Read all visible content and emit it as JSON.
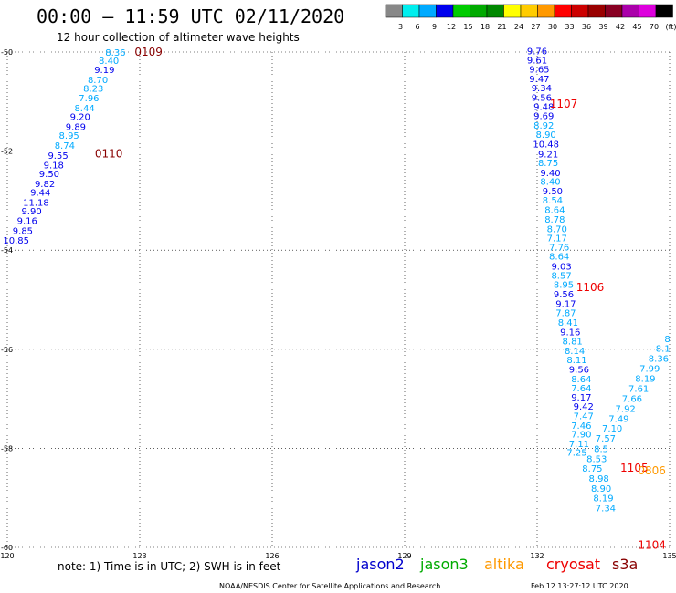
{
  "title": "00:00 – 11:59 UTC 02/11/2020",
  "subtitle": "12 hour collection of altimeter wave heights",
  "note": "note: 1) Time is in UTC; 2) SWH is in feet",
  "credit": "NOAA/NESDIS Center for Satellite Applications and Research",
  "timestamp": "Feb 12 13:27:12 UTC 2020",
  "missions": [
    {
      "name": "jason2",
      "color": "#0000cc"
    },
    {
      "name": "jason3",
      "color": "#00aa00"
    },
    {
      "name": "altika",
      "color": "#ff9900"
    },
    {
      "name": "cryosat",
      "color": "#ee0000"
    },
    {
      "name": "s3a",
      "color": "#880000"
    }
  ],
  "colorbar": {
    "labels": [
      "3",
      "6",
      "9",
      "12",
      "15",
      "18",
      "21",
      "24",
      "27",
      "30",
      "33",
      "36",
      "39",
      "42",
      "45",
      "70",
      "(ft)"
    ],
    "colors": [
      "#888888",
      "#00eeee",
      "#00aaff",
      "#0000ee",
      "#00cc00",
      "#00aa00",
      "#008800",
      "#ffff00",
      "#ffcc00",
      "#ff9900",
      "#ff0000",
      "#cc0000",
      "#990000",
      "#880022",
      "#aa00aa",
      "#dd00dd",
      "#000000"
    ]
  },
  "chart_data": {
    "type": "scatter",
    "xlabel": "",
    "ylabel": "",
    "xlim": [
      120,
      135
    ],
    "ylim": [
      -60,
      -50
    ],
    "x_ticks": [
      "120",
      "123",
      "126",
      "129",
      "132",
      "135"
    ],
    "y_ticks": [
      "-50",
      "-52",
      "-54",
      "-56",
      "-58",
      "-60"
    ],
    "grid": true,
    "pass_labels": [
      {
        "text": "0109",
        "x": 123.2,
        "y": -50.0,
        "color": "#880000"
      },
      {
        "text": "0110",
        "x": 122.3,
        "y": -52.05,
        "color": "#880000"
      },
      {
        "text": "1107",
        "x": 132.6,
        "y": -51.05,
        "color": "#ee0000"
      },
      {
        "text": "1106",
        "x": 133.2,
        "y": -54.75,
        "color": "#ee0000"
      },
      {
        "text": "1105",
        "x": 134.2,
        "y": -58.4,
        "color": "#ee0000"
      },
      {
        "text": "0806",
        "x": 134.6,
        "y": -58.45,
        "color": "#ff9900"
      },
      {
        "text": "1104",
        "x": 134.6,
        "y": -59.95,
        "color": "#ee0000"
      }
    ],
    "series": [
      {
        "points": [
          {
            "x": 122.45,
            "y": -50.0,
            "v": "8.36",
            "c": "#00aaff"
          },
          {
            "x": 122.3,
            "y": -50.17,
            "v": "8.40",
            "c": "#00aaff"
          },
          {
            "x": 122.2,
            "y": -50.35,
            "v": "9.19",
            "c": "#0000ee"
          },
          {
            "x": 122.05,
            "y": -50.55,
            "v": "8.70",
            "c": "#00aaff"
          },
          {
            "x": 121.95,
            "y": -50.73,
            "v": "8.23",
            "c": "#00aaff"
          },
          {
            "x": 121.85,
            "y": -50.92,
            "v": "7.96",
            "c": "#00aaff"
          },
          {
            "x": 121.75,
            "y": -51.12,
            "v": "8.44",
            "c": "#00aaff"
          },
          {
            "x": 121.65,
            "y": -51.3,
            "v": "9.20",
            "c": "#0000ee"
          },
          {
            "x": 121.55,
            "y": -51.5,
            "v": "9.89",
            "c": "#0000ee"
          },
          {
            "x": 121.4,
            "y": -51.68,
            "v": "8.95",
            "c": "#00aaff"
          },
          {
            "x": 121.3,
            "y": -51.88,
            "v": "8.74",
            "c": "#00aaff"
          },
          {
            "x": 121.15,
            "y": -52.08,
            "v": "9.55",
            "c": "#0000ee"
          },
          {
            "x": 121.05,
            "y": -52.27,
            "v": "9.18",
            "c": "#0000ee"
          },
          {
            "x": 120.95,
            "y": -52.45,
            "v": "9.50",
            "c": "#0000ee"
          },
          {
            "x": 120.85,
            "y": -52.65,
            "v": "9.82",
            "c": "#0000ee"
          },
          {
            "x": 120.75,
            "y": -52.83,
            "v": "9.44",
            "c": "#0000ee"
          },
          {
            "x": 120.65,
            "y": -53.03,
            "v": "11.18",
            "c": "#0000ee"
          },
          {
            "x": 120.55,
            "y": -53.2,
            "v": "9.90",
            "c": "#0000ee"
          },
          {
            "x": 120.45,
            "y": -53.4,
            "v": "9.16",
            "c": "#0000ee"
          },
          {
            "x": 120.35,
            "y": -53.6,
            "v": "9.85",
            "c": "#0000ee"
          },
          {
            "x": 120.2,
            "y": -53.79,
            "v": "10.85",
            "c": "#0000ee"
          }
        ]
      },
      {
        "points": [
          {
            "x": 132.0,
            "y": -49.97,
            "v": "9.76",
            "c": "#0000ee"
          },
          {
            "x": 132.0,
            "y": -50.16,
            "v": "9.61",
            "c": "#0000ee"
          },
          {
            "x": 132.05,
            "y": -50.34,
            "v": "9.65",
            "c": "#0000ee"
          },
          {
            "x": 132.05,
            "y": -50.53,
            "v": "9.47",
            "c": "#0000ee"
          },
          {
            "x": 132.1,
            "y": -50.72,
            "v": "9.34",
            "c": "#0000ee"
          },
          {
            "x": 132.1,
            "y": -50.91,
            "v": "9.56",
            "c": "#0000ee"
          },
          {
            "x": 132.15,
            "y": -51.1,
            "v": "9.48",
            "c": "#0000ee"
          },
          {
            "x": 132.15,
            "y": -51.28,
            "v": "9.69",
            "c": "#0000ee"
          },
          {
            "x": 132.15,
            "y": -51.47,
            "v": "8.92",
            "c": "#00aaff"
          },
          {
            "x": 132.2,
            "y": -51.66,
            "v": "8.90",
            "c": "#00aaff"
          },
          {
            "x": 132.2,
            "y": -51.85,
            "v": "10.48",
            "c": "#0000ee"
          },
          {
            "x": 132.25,
            "y": -52.05,
            "v": "9.21",
            "c": "#0000ee"
          },
          {
            "x": 132.25,
            "y": -52.23,
            "v": "8.75",
            "c": "#00aaff"
          },
          {
            "x": 132.3,
            "y": -52.43,
            "v": "9.40",
            "c": "#0000ee"
          },
          {
            "x": 132.3,
            "y": -52.61,
            "v": "8.40",
            "c": "#00aaff"
          },
          {
            "x": 132.35,
            "y": -52.8,
            "v": "9.50",
            "c": "#0000ee"
          },
          {
            "x": 132.35,
            "y": -52.98,
            "v": "8.54",
            "c": "#00aaff"
          },
          {
            "x": 132.4,
            "y": -53.18,
            "v": "8.64",
            "c": "#00aaff"
          },
          {
            "x": 132.4,
            "y": -53.37,
            "v": "8.78",
            "c": "#00aaff"
          },
          {
            "x": 132.45,
            "y": -53.56,
            "v": "8.70",
            "c": "#00aaff"
          },
          {
            "x": 132.45,
            "y": -53.75,
            "v": "7.17",
            "c": "#00aaff"
          },
          {
            "x": 132.5,
            "y": -53.93,
            "v": "7.76",
            "c": "#00aaff"
          },
          {
            "x": 132.5,
            "y": -54.12,
            "v": "8.64",
            "c": "#00aaff"
          },
          {
            "x": 132.55,
            "y": -54.32,
            "v": "9.03",
            "c": "#0000ee"
          },
          {
            "x": 132.55,
            "y": -54.5,
            "v": "8.57",
            "c": "#00aaff"
          },
          {
            "x": 132.6,
            "y": -54.69,
            "v": "8.95",
            "c": "#00aaff"
          },
          {
            "x": 132.6,
            "y": -54.88,
            "v": "9.56",
            "c": "#0000ee"
          },
          {
            "x": 132.65,
            "y": -55.07,
            "v": "9.17",
            "c": "#0000ee"
          },
          {
            "x": 132.65,
            "y": -55.26,
            "v": "7.87",
            "c": "#00aaff"
          },
          {
            "x": 132.7,
            "y": -55.45,
            "v": "8.41",
            "c": "#00aaff"
          },
          {
            "x": 132.75,
            "y": -55.64,
            "v": "9.16",
            "c": "#0000ee"
          },
          {
            "x": 132.8,
            "y": -55.83,
            "v": "8.81",
            "c": "#00aaff"
          },
          {
            "x": 132.85,
            "y": -56.02,
            "v": "8.14",
            "c": "#00aaff"
          },
          {
            "x": 132.9,
            "y": -56.21,
            "v": "8.11",
            "c": "#00aaff"
          },
          {
            "x": 132.95,
            "y": -56.4,
            "v": "9.56",
            "c": "#0000ee"
          },
          {
            "x": 133.0,
            "y": -56.59,
            "v": "8.64",
            "c": "#00aaff"
          },
          {
            "x": 133.0,
            "y": -56.78,
            "v": "7.64",
            "c": "#00aaff"
          },
          {
            "x": 133.0,
            "y": -56.96,
            "v": "9.17",
            "c": "#0000ee"
          },
          {
            "x": 133.05,
            "y": -57.15,
            "v": "9.42",
            "c": "#0000ee"
          },
          {
            "x": 133.05,
            "y": -57.34,
            "v": "7.47",
            "c": "#00aaff"
          },
          {
            "x": 133.0,
            "y": -57.53,
            "v": "7.46",
            "c": "#00aaff"
          },
          {
            "x": 133.0,
            "y": -57.71,
            "v": "7.90",
            "c": "#00aaff"
          },
          {
            "x": 132.95,
            "y": -57.9,
            "v": "7.11",
            "c": "#00aaff"
          },
          {
            "x": 132.9,
            "y": -58.08,
            "v": "7.25",
            "c": "#00aaff"
          }
        ]
      },
      {
        "points": [
          {
            "x": 134.95,
            "y": -55.78,
            "v": "8",
            "c": "#00aaff"
          },
          {
            "x": 134.85,
            "y": -55.98,
            "v": "8.1",
            "c": "#00aaff"
          },
          {
            "x": 134.75,
            "y": -56.18,
            "v": "8.36",
            "c": "#00aaff"
          },
          {
            "x": 134.55,
            "y": -56.38,
            "v": "7.99",
            "c": "#00aaff"
          },
          {
            "x": 134.45,
            "y": -56.58,
            "v": "8.19",
            "c": "#00aaff"
          },
          {
            "x": 134.3,
            "y": -56.79,
            "v": "7.61",
            "c": "#00aaff"
          },
          {
            "x": 134.15,
            "y": -56.99,
            "v": "7.66",
            "c": "#00aaff"
          },
          {
            "x": 134.0,
            "y": -57.19,
            "v": "7.92",
            "c": "#00aaff"
          },
          {
            "x": 133.85,
            "y": -57.39,
            "v": "7.49",
            "c": "#00aaff"
          },
          {
            "x": 133.7,
            "y": -57.59,
            "v": "7.10",
            "c": "#00aaff"
          },
          {
            "x": 133.55,
            "y": -57.79,
            "v": "7.57",
            "c": "#00aaff"
          },
          {
            "x": 133.45,
            "y": -58.0,
            "v": "8.5",
            "c": "#00aaff"
          },
          {
            "x": 133.35,
            "y": -58.2,
            "v": "8.53",
            "c": "#00aaff"
          },
          {
            "x": 133.25,
            "y": -58.4,
            "v": "8.75",
            "c": "#00aaff"
          },
          {
            "x": 133.4,
            "y": -58.6,
            "v": "8.98",
            "c": "#00aaff"
          },
          {
            "x": 133.45,
            "y": -58.8,
            "v": "8.90",
            "c": "#00aaff"
          },
          {
            "x": 133.5,
            "y": -59.0,
            "v": "8.19",
            "c": "#00aaff"
          },
          {
            "x": 133.55,
            "y": -59.2,
            "v": "7.34",
            "c": "#00aaff"
          }
        ]
      }
    ]
  }
}
